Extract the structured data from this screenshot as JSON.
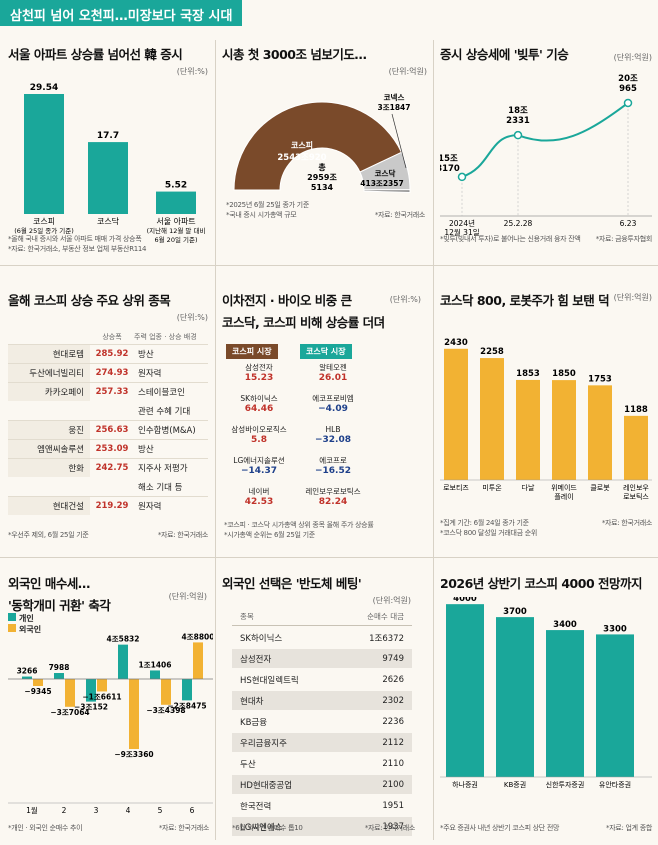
{
  "banner": "삼천피 넘어 오천피…미장보다 국장 시대",
  "colors": {
    "teal": "#1aa79a",
    "orange": "#f2b233",
    "brown": "#7a4a2a",
    "red": "#c0322a",
    "blue": "#1d3f8a"
  },
  "p1": {
    "title": "서울 아파트 상승률 넘어선 韓 증시",
    "unit": "(단위:%)",
    "note1": "*올해 국내 증시와 서울 아파트 매매 가격 상승폭",
    "note2": "*자료: 한국거래소, 부동산 정보 업체 부동산R114",
    "cat_labels": [
      [
        "코스피",
        "(6월 25일 종가 기준)"
      ],
      [
        "코스닥",
        ""
      ],
      [
        "서울 아파트",
        "(지난해 12월 말 대비",
        "6월 20일 기준)"
      ]
    ]
  },
  "p2": {
    "title": "시총 첫 3000조 넘보기도…",
    "unit": "(단위:억원)",
    "total_label": "총",
    "total_lines": [
      "2959조",
      "5134"
    ],
    "kospi_label": "코스피",
    "kospi_value": "2543조920",
    "kosdaq_label": "코스닥",
    "kosdaq_value": "413조2357",
    "konex_label": "코넥스",
    "konex_value": "3조1847",
    "note1": "*2025년 6월 25일 종가 기준",
    "note2": "*국내 증시 시가총액 규모",
    "source": "*자료: 한국거래소"
  },
  "p3": {
    "title": "증시 상승세에 '빚투' 기승",
    "unit": "(단위:억원)",
    "x_labels": [
      [
        "2024년",
        "12월 31일"
      ],
      [
        "25.2.28"
      ],
      [
        "6.23"
      ]
    ],
    "value_labels": [
      [
        "15조",
        "8170"
      ],
      [
        "18조",
        "2331"
      ],
      [
        "20조",
        "965"
      ]
    ],
    "note1": "*빚투(빚내서 투자)로 불어나는 신용거래 융자 잔액",
    "source": "*자료: 금융투자협회"
  },
  "p4": {
    "title": "올해 코스피 상승 주요 상위 종목",
    "unit": "(단위:%)",
    "headers": [
      "상승폭",
      "주력 업종 · 상승 배경"
    ],
    "rows": [
      {
        "name": "현대로템",
        "rate": "285.92",
        "desc": "방산"
      },
      {
        "name": "두산에너빌리티",
        "rate": "274.93",
        "desc": "원자력"
      },
      {
        "name": "카카오페이",
        "rate": "257.33",
        "desc": "스테이블코인"
      },
      {
        "name": "",
        "rate": "",
        "desc": "관련 수혜 기대"
      },
      {
        "name": "웅진",
        "rate": "256.63",
        "desc": "인수합병(M&A)"
      },
      {
        "name": "엠앤씨솔루션",
        "rate": "253.09",
        "desc": "방산"
      },
      {
        "name": "한화",
        "rate": "242.75",
        "desc": "지주사 저평가"
      },
      {
        "name": "",
        "rate": "",
        "desc": "해소 기대 등"
      },
      {
        "name": "현대건설",
        "rate": "219.29",
        "desc": "원자력"
      }
    ],
    "note1": "*우선주 제외, 6월 25일 기준",
    "source": "*자료: 한국거래소"
  },
  "p5": {
    "title1": "이차전지 · 바이오 비중 큰",
    "title2": "코스닥, 코스피 비해 상승률 더뎌",
    "unit": "(단위:%)",
    "tag_kospi": "코스피 시장",
    "tag_kosdaq": "코스닥 시장",
    "kospi": [
      [
        "삼성전자",
        "15.23"
      ],
      [
        "SK하이닉스",
        "64.46"
      ],
      [
        "삼성바이오로직스",
        "5.8"
      ],
      [
        "LG에너지솔루션",
        "−14.37"
      ],
      [
        "네이버",
        "42.53"
      ]
    ],
    "kosdaq": [
      [
        "알테오젠",
        "26.01"
      ],
      [
        "에코프로비엠",
        "−4.09"
      ],
      [
        "HLB",
        "−32.08"
      ],
      [
        "에코프로",
        "−16.52"
      ],
      [
        "레인보우로보틱스",
        "82.24"
      ]
    ],
    "note1": "*코스피 · 코스닥 시가총액 상위 종목 올해 주가 상승률",
    "note2": "*시가총액 순위는 6월 25일 기준"
  },
  "p6": {
    "title": "코스닥 800, 로봇주가 힘 보탠 덕",
    "unit": "(단위:억원)",
    "cat_labels": [
      [
        "로보티즈"
      ],
      [
        "미투온"
      ],
      [
        "다날"
      ],
      [
        "위메이드",
        "플레이"
      ],
      [
        "클로봇"
      ],
      [
        "레인보우",
        "로보틱스"
      ]
    ],
    "note1": "*집계 기간: 6월 24일 종가 기준",
    "note2": "*코스닥 800 달성일 거래대금 순위",
    "source": "*자료: 한국거래소"
  },
  "p7": {
    "title1": "외국인 매수세…",
    "title2": "'동학개미 귀환' 축각",
    "unit": "(단위:억원)",
    "legend": [
      "개인",
      "외국인"
    ],
    "months": [
      "1월",
      "2",
      "3",
      "4",
      "5",
      "6"
    ],
    "labels_ind": [
      "3266",
      "7988",
      "−3조152",
      "4조5832",
      "1조1406",
      "−2조8475"
    ],
    "labels_for": [
      "−9345",
      "−3조7064",
      "−1조6611",
      "−9조3360",
      "−3조4398",
      "4조8800"
    ],
    "note1": "*개인 · 외국인 순매수 추이",
    "source": "*자료: 한국거래소"
  },
  "p8": {
    "title": "외국인 선택은 '반도체 베팅'",
    "unit": "(단위:억원)",
    "headers": [
      "종목",
      "순매수 대금"
    ],
    "rows": [
      [
        "SK하이닉스",
        "1조6372"
      ],
      [
        "삼성전자",
        "9749"
      ],
      [
        "HS현대일렉트릭",
        "2626"
      ],
      [
        "현대차",
        "2302"
      ],
      [
        "KB금융",
        "2236"
      ],
      [
        "우리금융지주",
        "2112"
      ],
      [
        "두산",
        "2110"
      ],
      [
        "HD현대중공업",
        "2100"
      ],
      [
        "한국전력",
        "1951"
      ],
      [
        "LG씨엔에스",
        "1937"
      ]
    ],
    "note1": "*6월 외국인 순매수 톱10",
    "source": "*자료: 한국거래소"
  },
  "p9": {
    "title": "2026년 상반기 코스피 4000 전망까지",
    "note1": "*주요 증권사 내년 상반기 코스피 상단 전망",
    "source": "*자료: 업계 종합"
  },
  "chart_data": [
    {
      "type": "bar",
      "categories": [
        "코스피",
        "코스닥",
        "서울 아파트"
      ],
      "values": [
        29.54,
        17.7,
        5.52
      ],
      "ylabel": "%",
      "ylim": [
        0,
        32
      ]
    },
    {
      "type": "pie",
      "categories": [
        "코스피",
        "코스닥",
        "코넥스"
      ],
      "values": [
        25430920,
        4132357,
        31847
      ],
      "total": 29595134
    },
    {
      "type": "line",
      "x": [
        "2024년 12월 31일",
        "25.2.28",
        "6.23"
      ],
      "values": [
        158170,
        182331,
        200965
      ],
      "ylabel": "억원"
    },
    {
      "type": "bar",
      "categories": [
        "로보티즈",
        "미투온",
        "다날",
        "위메이드플레이",
        "클로봇",
        "레인보우로보틱스"
      ],
      "values": [
        2430,
        2258,
        1853,
        1850,
        1753,
        1188
      ],
      "ylabel": "억원"
    },
    {
      "type": "bar",
      "categories": [
        "1월",
        "2",
        "3",
        "4",
        "5",
        "6"
      ],
      "series": [
        {
          "name": "개인",
          "values": [
            3266,
            7988,
            -30152,
            45832,
            11406,
            -28475
          ]
        },
        {
          "name": "외국인",
          "values": [
            -9345,
            -37064,
            -16611,
            -93360,
            -34398,
            48800
          ]
        }
      ],
      "ylabel": "억원"
    },
    {
      "type": "bar",
      "categories": [
        "하나증권",
        "KB증권",
        "신한투자증권",
        "유안타증권"
      ],
      "values": [
        4000,
        3700,
        3400,
        3300
      ]
    }
  ]
}
